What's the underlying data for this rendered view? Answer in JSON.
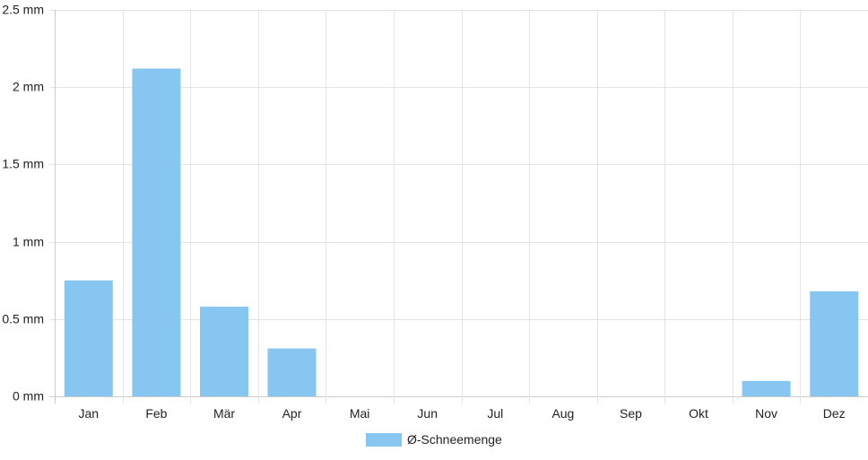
{
  "chart_data": {
    "type": "bar",
    "categories": [
      "Jan",
      "Feb",
      "Mär",
      "Apr",
      "Mai",
      "Jun",
      "Jul",
      "Aug",
      "Sep",
      "Okt",
      "Nov",
      "Dez"
    ],
    "series": [
      {
        "name": "Ø-Schneemenge",
        "values": [
          0.75,
          2.12,
          0.58,
          0.31,
          0,
          0,
          0,
          0,
          0,
          0,
          0.1,
          0.68
        ],
        "color": "#87c6f0"
      }
    ],
    "ylim": [
      0,
      2.5
    ],
    "yticks": [
      "0 mm",
      "0.5 mm",
      "1 mm",
      "1.5 mm",
      "2 mm",
      "2.5 mm"
    ],
    "ytick_values": [
      0,
      0.5,
      1,
      1.5,
      2,
      2.5
    ],
    "grid": true,
    "legend": "bottom-center"
  }
}
